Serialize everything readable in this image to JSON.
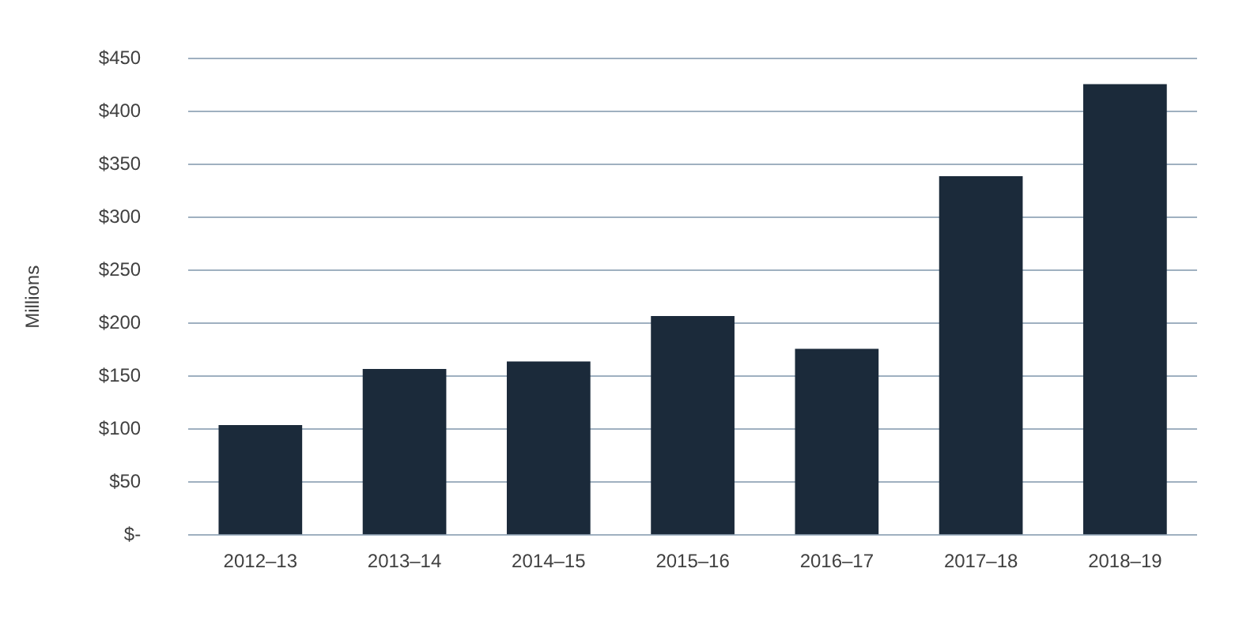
{
  "chart_data": {
    "type": "bar",
    "ylabel": "Millions",
    "categories": [
      "2012–13",
      "2013–14",
      "2014–15",
      "2015–16",
      "2016–17",
      "2017–18",
      "2018–19"
    ],
    "values": [
      104,
      157,
      164,
      207,
      176,
      339,
      426
    ],
    "color": "#1b2a3a",
    "ylim": [
      0,
      450
    ],
    "yticks": [
      {
        "value": 0,
        "label": "$-"
      },
      {
        "value": 50,
        "label": "$50"
      },
      {
        "value": 100,
        "label": "$100"
      },
      {
        "value": 150,
        "label": "$150"
      },
      {
        "value": 200,
        "label": "$200"
      },
      {
        "value": 250,
        "label": "$250"
      },
      {
        "value": 300,
        "label": "$300"
      },
      {
        "value": 350,
        "label": "$350"
      },
      {
        "value": 400,
        "label": "$400"
      },
      {
        "value": 450,
        "label": "$450"
      }
    ],
    "grid": "y",
    "legend": false
  }
}
